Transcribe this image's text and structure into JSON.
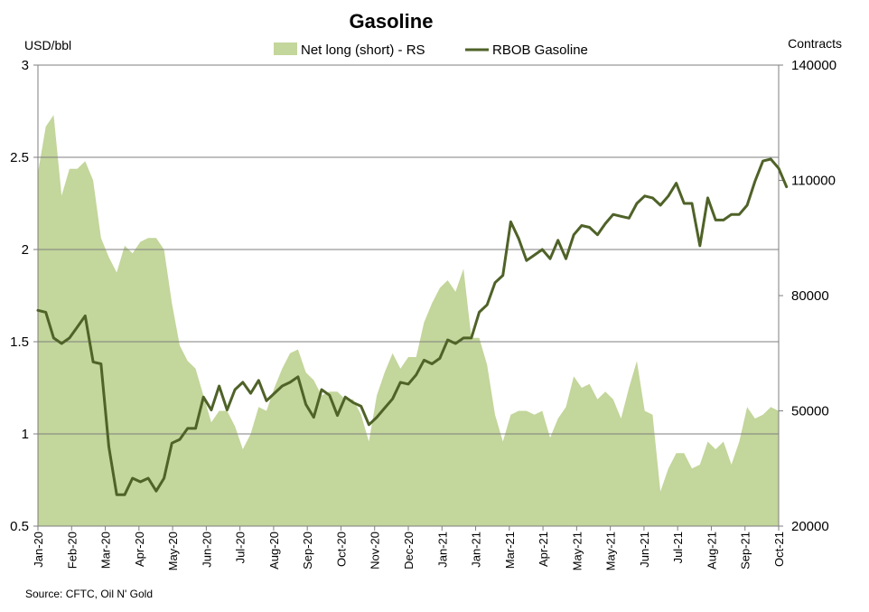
{
  "chart_data": {
    "type": "area+line",
    "title": "Gasoline",
    "left_axis_label": "USD/bbl",
    "right_axis_label": "Contracts",
    "left_ylim": [
      0.5,
      3
    ],
    "right_ylim": [
      20000,
      140000
    ],
    "left_ticks": [
      "0.5",
      "1",
      "1.5",
      "2",
      "2.5",
      "3"
    ],
    "right_ticks": [
      "20000",
      "50000",
      "80000",
      "110000",
      "140000"
    ],
    "x_tick_labels": [
      "Jan-20",
      "Feb-20",
      "Mar-20",
      "Apr-20",
      "May-20",
      "Jun-20",
      "Jul-20",
      "Aug-20",
      "Sep-20",
      "Oct-20",
      "Nov-20",
      "Dec-20",
      "Jan-21",
      "Jan-21",
      "Mar-21",
      "Apr-21",
      "May-21",
      "May-21",
      "Jun-21",
      "Jul-21",
      "Aug-21",
      "Sep-21",
      "Oct-21"
    ],
    "grid": "horizontal",
    "legend_position": "top",
    "series": [
      {
        "name": "Net long (short) - RS",
        "kind": "area",
        "axis": "right",
        "color": "#c3d69b",
        "values": [
          112000,
          124000,
          127000,
          106000,
          113000,
          113000,
          115000,
          110000,
          95000,
          90000,
          86000,
          93000,
          91000,
          94000,
          95000,
          95000,
          92000,
          78000,
          67000,
          63000,
          61000,
          54000,
          47000,
          50000,
          50000,
          46000,
          40000,
          44000,
          51000,
          50000,
          56000,
          61000,
          65000,
          66000,
          60000,
          58000,
          54000,
          55000,
          55000,
          53000,
          53000,
          49000,
          42000,
          54000,
          60000,
          65000,
          61000,
          64000,
          64000,
          73000,
          78000,
          82000,
          84000,
          81000,
          87000,
          69000,
          69000,
          62000,
          49000,
          42000,
          49000,
          50000,
          50000,
          49000,
          50000,
          43000,
          48000,
          51000,
          59000,
          56000,
          57000,
          53000,
          55000,
          53000,
          48000,
          56000,
          63000,
          50000,
          49000,
          29000,
          35000,
          39000,
          39000,
          35000,
          36000,
          42000,
          40000,
          42000,
          36000,
          42000,
          51000,
          48000,
          49000,
          51000,
          50000
        ]
      },
      {
        "name": "RBOB Gasoline",
        "kind": "line",
        "axis": "left",
        "color": "#4f6228",
        "values": [
          1.67,
          1.66,
          1.52,
          1.49,
          1.52,
          1.58,
          1.64,
          1.39,
          1.38,
          0.93,
          0.67,
          0.67,
          0.76,
          0.74,
          0.76,
          0.69,
          0.76,
          0.95,
          0.97,
          1.03,
          1.03,
          1.2,
          1.13,
          1.26,
          1.13,
          1.24,
          1.28,
          1.22,
          1.29,
          1.18,
          1.22,
          1.26,
          1.28,
          1.31,
          1.16,
          1.09,
          1.24,
          1.21,
          1.1,
          1.2,
          1.17,
          1.15,
          1.05,
          1.09,
          1.14,
          1.19,
          1.28,
          1.27,
          1.32,
          1.4,
          1.38,
          1.41,
          1.51,
          1.49,
          1.52,
          1.52,
          1.66,
          1.7,
          1.82,
          1.86,
          2.15,
          2.06,
          1.94,
          1.97,
          2,
          1.95,
          2.05,
          1.95,
          2.08,
          2.13,
          2.12,
          2.08,
          2.14,
          2.19,
          2.18,
          2.17,
          2.25,
          2.29,
          2.28,
          2.24,
          2.29,
          2.36,
          2.25,
          2.25,
          2.02,
          2.28,
          2.16,
          2.16,
          2.19,
          2.19,
          2.24,
          2.37,
          2.48,
          2.49,
          2.44,
          2.34
        ]
      }
    ],
    "source": "Source: CFTC, Oil N' Gold"
  }
}
